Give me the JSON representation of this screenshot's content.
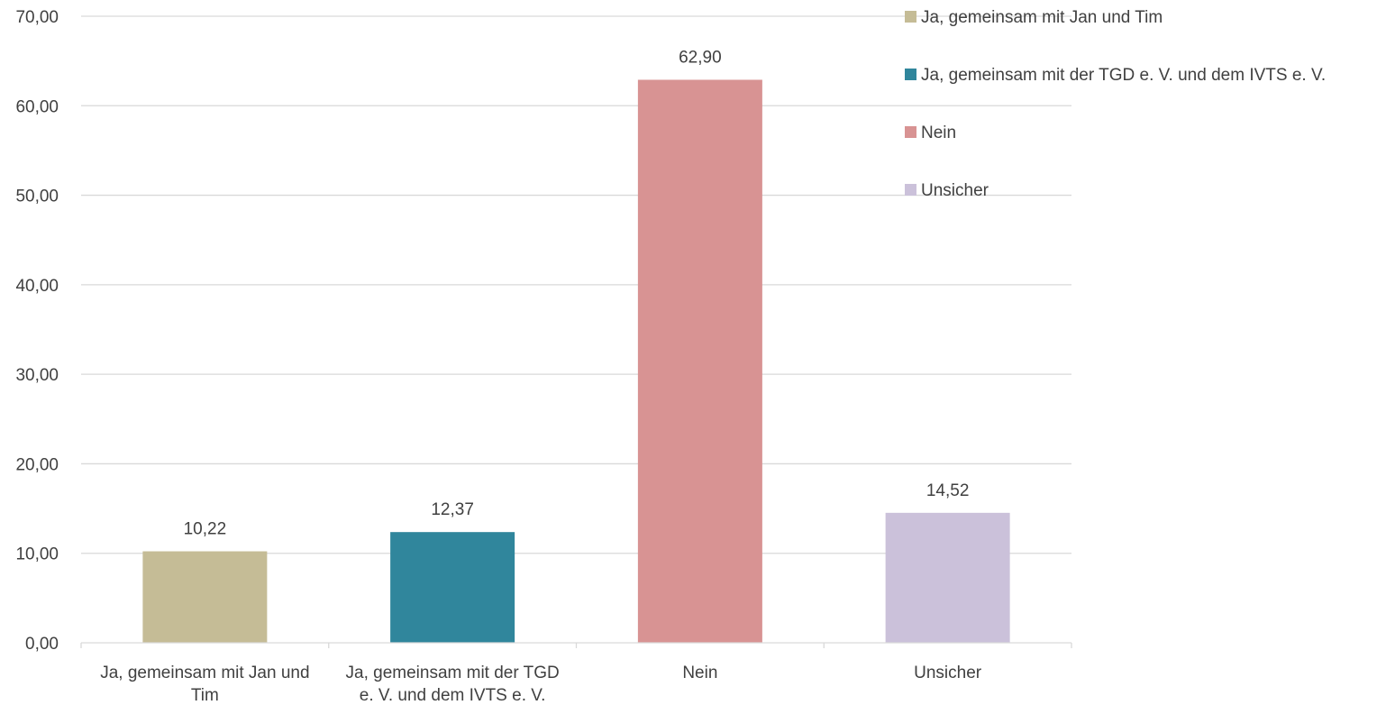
{
  "chart_data": {
    "type": "bar",
    "categories": [
      "Ja, gemeinsam mit Jan und Tim",
      "Ja, gemeinsam mit der TGD e. V. und dem IVTS e. V.",
      "Nein",
      "Unsicher"
    ],
    "category_label_lines": [
      [
        "Ja, gemeinsam mit Jan und",
        "Tim"
      ],
      [
        "Ja, gemeinsam mit der TGD",
        "e. V. und dem IVTS e. V."
      ],
      [
        "Nein"
      ],
      [
        "Unsicher"
      ]
    ],
    "values": [
      10.22,
      12.37,
      62.9,
      14.52
    ],
    "value_labels": [
      "10,22",
      "12,37",
      "62,90",
      "14,52"
    ],
    "colors": [
      "#c5bc96",
      "#30869c",
      "#d89393",
      "#cbc1da"
    ],
    "ylim": [
      0,
      70
    ],
    "y_ticks": [
      0,
      10,
      20,
      30,
      40,
      50,
      60,
      70
    ],
    "y_tick_labels": [
      "0,00",
      "10,00",
      "20,00",
      "30,00",
      "40,00",
      "50,00",
      "60,00",
      "70,00"
    ],
    "grid": true,
    "legend": {
      "position": "top-right",
      "entries": [
        {
          "label": "Ja, gemeinsam mit Jan und Tim",
          "color": "#c5bc96"
        },
        {
          "label": "Ja, gemeinsam mit der TGD e. V. und dem IVTS e. V.",
          "color": "#30869c"
        },
        {
          "label": "Nein",
          "color": "#d89393"
        },
        {
          "label": "Unsicher",
          "color": "#cbc1da"
        }
      ]
    },
    "title": "",
    "xlabel": "",
    "ylabel": ""
  }
}
